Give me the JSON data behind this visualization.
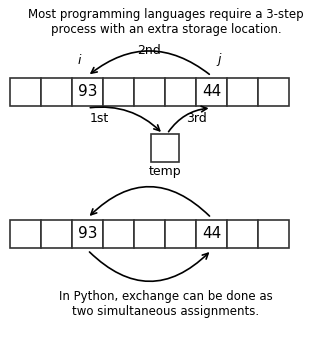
{
  "top_text": "Most programming languages require a 3-step\nprocess with an extra storage location.",
  "bottom_text": "In Python, exchange can be done as\ntwo simultaneous assignments.",
  "array1_values": [
    "",
    "",
    "93",
    "",
    "",
    "",
    "44",
    "",
    ""
  ],
  "array2_values": [
    "",
    "",
    "93",
    "",
    "",
    "",
    "44",
    "",
    ""
  ],
  "n_cells": 9,
  "i_cell": 2,
  "j_cell": 6,
  "bg_color": "#ffffff",
  "cell_facecolor": "#ffffff",
  "cell_edgecolor": "#333333",
  "text_color": "#000000",
  "fontsize_main": 8.5,
  "fontsize_labels": 9,
  "fontsize_values": 11
}
